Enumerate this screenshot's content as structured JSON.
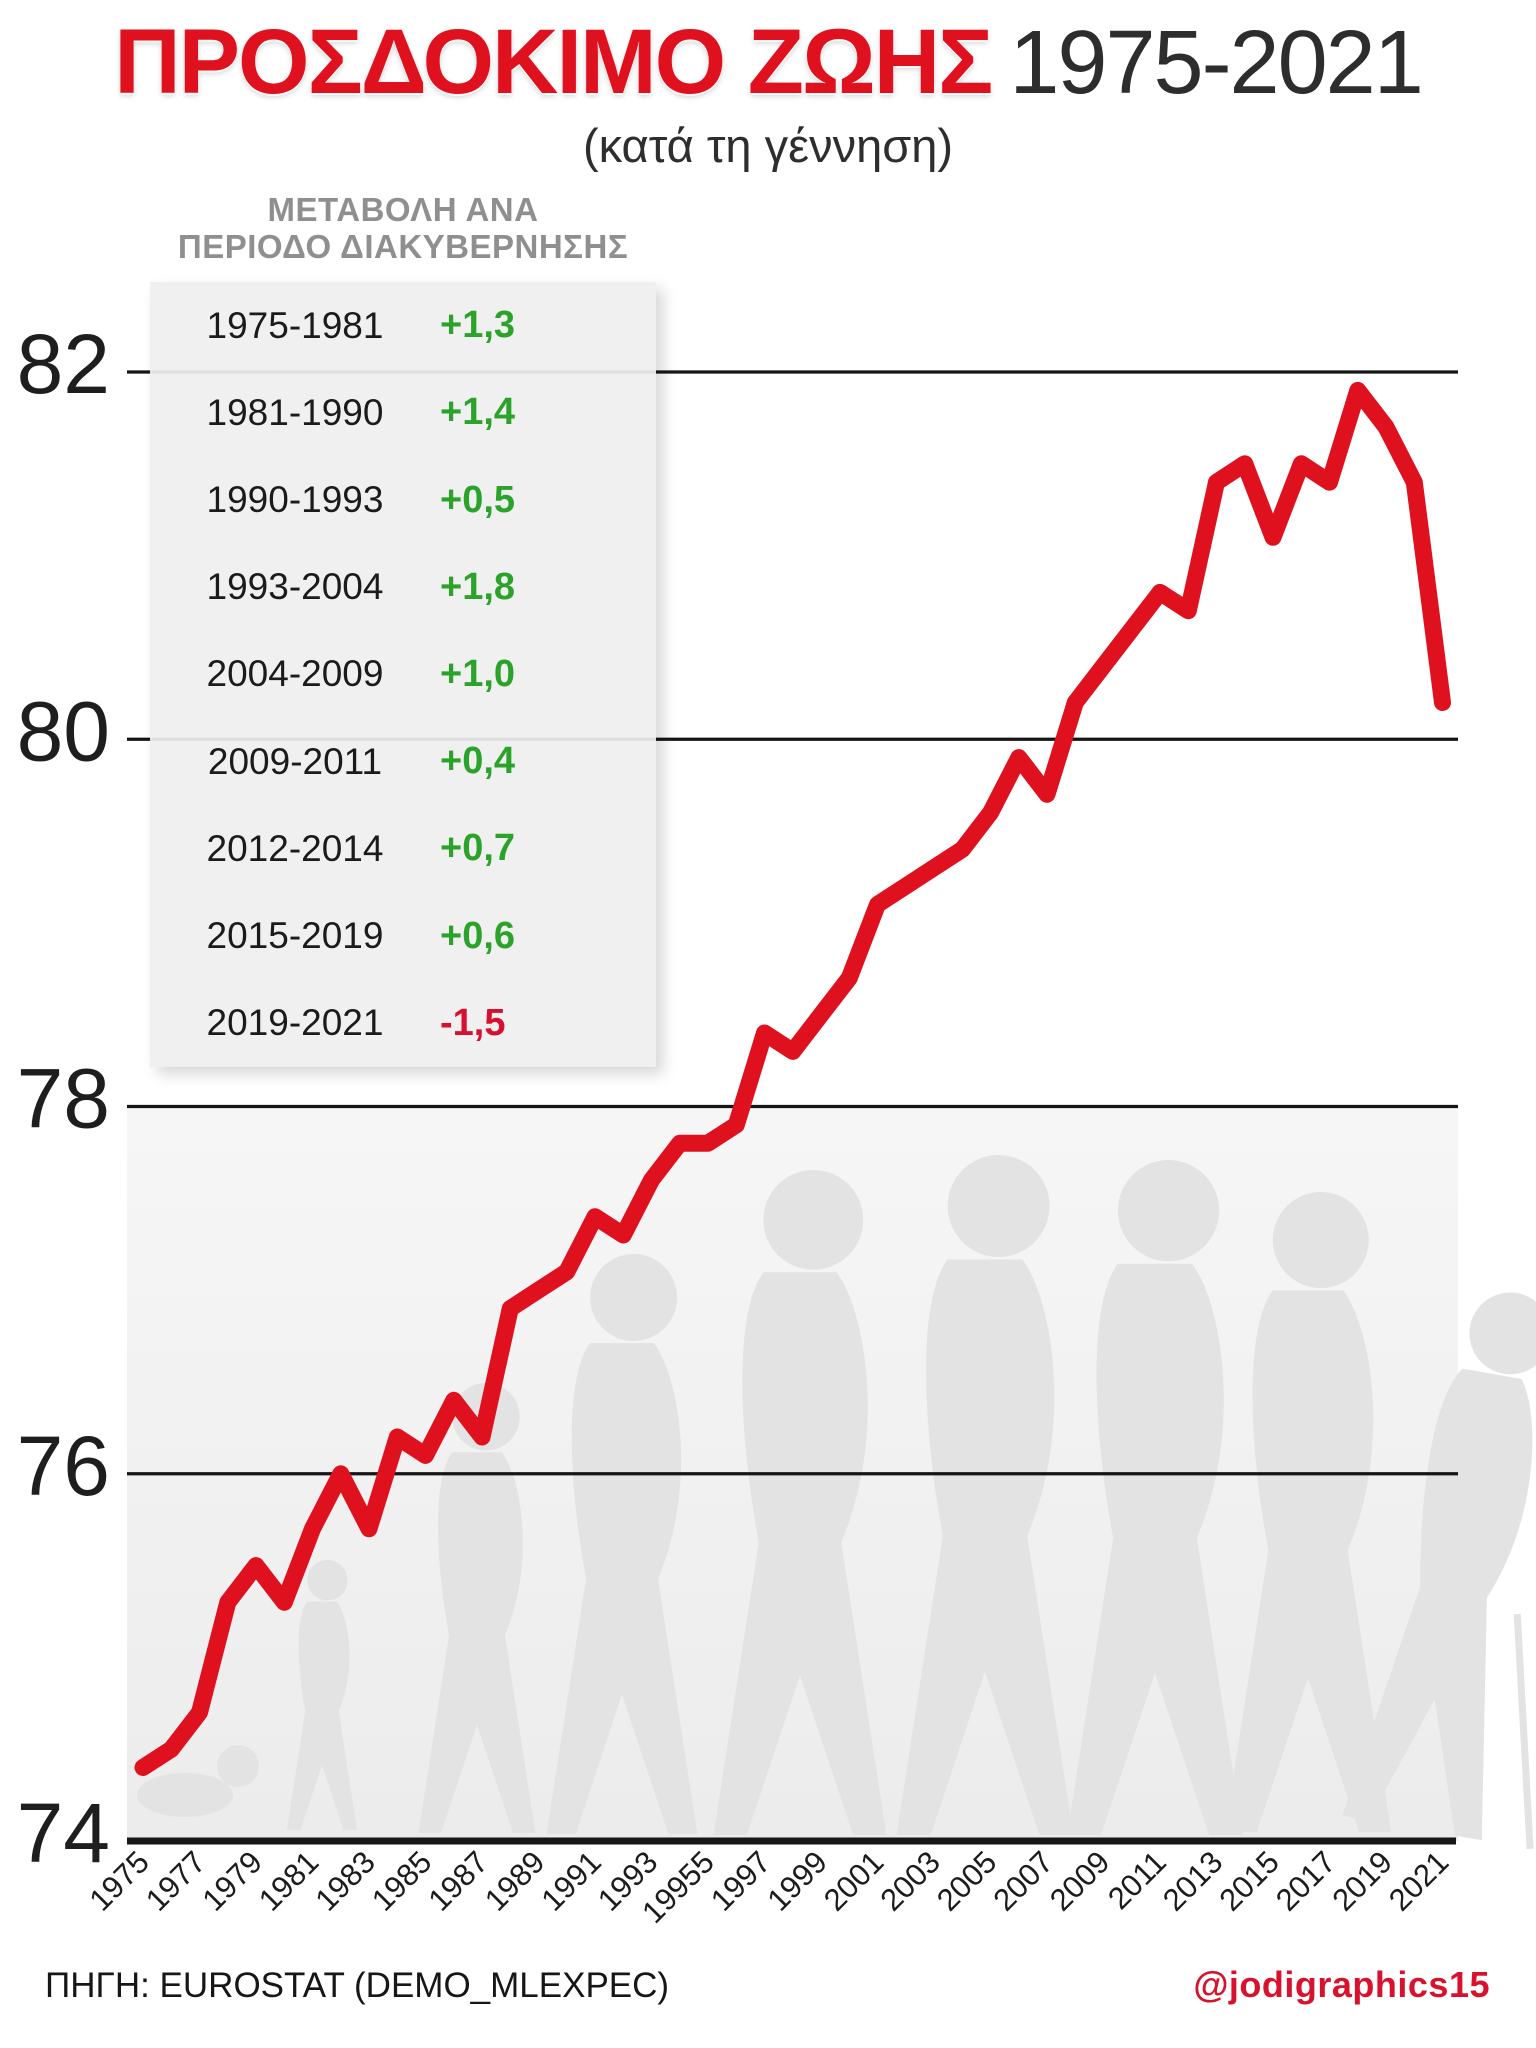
{
  "header": {
    "title": "ΠΡΟΣΔΟΚΙΜΟ ΖΩΗΣ",
    "years": "1975-2021",
    "subtitle": "(κατά τη γέννηση)"
  },
  "legend": {
    "header_line1": "ΜΕΤΑΒΟΛΗ ΑΝΑ",
    "header_line2": "ΠΕΡΙΟΔΟ ΔΙΑΚΥΒΕΡΝΗΣΗΣ",
    "rows": [
      {
        "period": "1975-1981",
        "change": "+1,3",
        "direction": "up"
      },
      {
        "period": "1981-1990",
        "change": "+1,4",
        "direction": "up"
      },
      {
        "period": "1990-1993",
        "change": "+0,5",
        "direction": "up"
      },
      {
        "period": "1993-2004",
        "change": "+1,8",
        "direction": "up"
      },
      {
        "period": "2004-2009",
        "change": "+1,0",
        "direction": "up"
      },
      {
        "period": "2009-2011",
        "change": "+0,4",
        "direction": "up"
      },
      {
        "period": "2012-2014",
        "change": "+0,7",
        "direction": "up"
      },
      {
        "period": "2015-2019",
        "change": "+0,6",
        "direction": "up"
      },
      {
        "period": "2019-2021",
        "change": "-1,5",
        "direction": "down"
      }
    ]
  },
  "chart_data": {
    "type": "line",
    "title": "ΠΡΟΣΔΟΚΙΜΟ ΖΩΗΣ 1975-2021 (κατά τη γέννηση)",
    "xlabel": "",
    "ylabel": "",
    "x": [
      1975,
      1976,
      1977,
      1978,
      1979,
      1980,
      1981,
      1982,
      1983,
      1984,
      1985,
      1986,
      1987,
      1988,
      1989,
      1990,
      1991,
      1992,
      1993,
      1994,
      1995,
      1996,
      1997,
      1998,
      1999,
      2000,
      2001,
      2002,
      2003,
      2004,
      2005,
      2006,
      2007,
      2008,
      2009,
      2010,
      2011,
      2012,
      2013,
      2014,
      2015,
      2016,
      2017,
      2018,
      2019,
      2020,
      2021
    ],
    "values": [
      74.4,
      74.5,
      74.7,
      75.3,
      75.5,
      75.3,
      75.7,
      76.0,
      75.7,
      76.2,
      76.1,
      76.4,
      76.2,
      76.9,
      77.0,
      77.1,
      77.4,
      77.3,
      77.6,
      77.8,
      77.8,
      77.9,
      78.4,
      78.3,
      78.5,
      78.7,
      79.1,
      79.2,
      79.3,
      79.4,
      79.6,
      79.9,
      79.7,
      80.2,
      80.4,
      80.6,
      80.8,
      80.7,
      81.4,
      81.5,
      81.1,
      81.5,
      81.4,
      81.9,
      81.7,
      81.4,
      80.2
    ],
    "ylim": [
      74,
      82
    ],
    "yticks": [
      74,
      76,
      78,
      80,
      82
    ],
    "xtick_labels": [
      "1975",
      "1977",
      "1979",
      "1981",
      "1983",
      "1985",
      "1987",
      "1989",
      "1991",
      "1993",
      "19955",
      "1997",
      "1999",
      "2001",
      "2003",
      "2005",
      "2007",
      "2009",
      "2011",
      "2013",
      "2015",
      "2017",
      "2019",
      "2021"
    ],
    "grid": true,
    "legend_position": "none",
    "line_color": "#e0111e",
    "positive_color": "#2ba32b",
    "negative_color": "#d81030",
    "grid_color": "#161616"
  },
  "footer": {
    "source": "ΠΗΓΗ: EUROSTAT (DEMO_MLEXPEC)",
    "credit": "@jodigraphics15"
  }
}
